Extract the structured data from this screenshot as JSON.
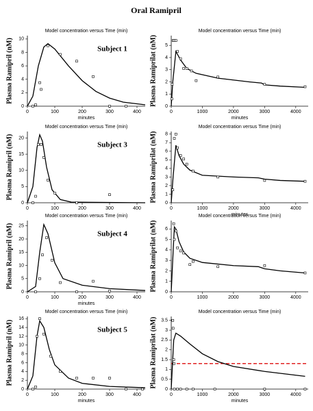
{
  "title": "Oral Ramipril",
  "chart_data": [
    {
      "type": "line",
      "title": "Model concentration versus Time (min)",
      "y_label": "Plasma Ramipril (nM)",
      "x_label": "minutes",
      "annotation": "Subject 1",
      "xlim": [
        0,
        430
      ],
      "ylim": [
        0,
        10.5
      ],
      "xticks": [
        0,
        100,
        200,
        300,
        400
      ],
      "yticks": [
        0,
        2,
        4,
        6,
        8,
        10
      ],
      "series": [
        {
          "style": "line",
          "color": "#000000",
          "x": [
            0,
            20,
            40,
            60,
            75,
            100,
            150,
            200,
            250,
            300,
            350,
            430
          ],
          "values": [
            0,
            1.5,
            6,
            8.8,
            9.3,
            8.5,
            6,
            3.8,
            2.2,
            1.2,
            0.6,
            0.2
          ]
        },
        {
          "style": "markers",
          "color": "#000000",
          "x": [
            20,
            30,
            45,
            50,
            75,
            120,
            180,
            240,
            300,
            360
          ],
          "values": [
            0,
            0.2,
            3.5,
            2.5,
            9,
            7.7,
            6.7,
            4.4,
            0,
            0
          ]
        }
      ]
    },
    {
      "type": "line",
      "title": "Model concentration versus Time (min)",
      "y_label": "Plasma Ramiprilat (nM)",
      "x_label": "minutes",
      "xlim": [
        0,
        4400
      ],
      "ylim": [
        0,
        5.8
      ],
      "xticks": [
        0,
        1000,
        2000,
        3000,
        4000
      ],
      "yticks": [
        0,
        1,
        2,
        3,
        4,
        5
      ],
      "series": [
        {
          "style": "line",
          "color": "#000000",
          "x": [
            0,
            50,
            150,
            300,
            500,
            800,
            1500,
            2500,
            2900,
            3000,
            3500,
            4300
          ],
          "values": [
            0,
            2,
            4.5,
            3.8,
            3.1,
            2.7,
            2.3,
            2.0,
            1.9,
            1.75,
            1.65,
            1.55
          ]
        },
        {
          "style": "markers",
          "color": "#000000",
          "x": [
            20,
            30,
            60,
            100,
            150,
            200,
            300,
            400,
            500,
            650,
            800,
            1500,
            3000,
            4300
          ],
          "values": [
            0.6,
            1.8,
            5.4,
            5.4,
            5.4,
            4.5,
            3.9,
            3.1,
            3.1,
            2.9,
            2.1,
            2.4,
            1.8,
            1.6
          ]
        }
      ]
    },
    {
      "type": "line",
      "title": "Model concentration versus Time (min)",
      "y_label": "Plasma Ramipril (nM)",
      "annotation": "Subject 3",
      "xlim": [
        0,
        430
      ],
      "ylim": [
        0,
        22
      ],
      "xticks": [
        0,
        100,
        200,
        300,
        400
      ],
      "yticks": [
        0,
        5,
        10,
        15,
        20
      ],
      "series": [
        {
          "style": "line",
          "color": "#000000",
          "x": [
            0,
            20,
            35,
            45,
            55,
            70,
            90,
            120,
            160,
            430
          ],
          "values": [
            0,
            5,
            17,
            21,
            19,
            11,
            4,
            1,
            0.2,
            0
          ]
        },
        {
          "style": "markers",
          "color": "#000000",
          "x": [
            20,
            30,
            40,
            50,
            60,
            75,
            100,
            180,
            300
          ],
          "values": [
            0,
            2,
            18,
            18,
            14,
            7,
            3,
            0,
            2.5
          ]
        }
      ]
    },
    {
      "type": "line",
      "title": "Model concentration versus Time (min)",
      "y_label": "Plasma Ramiprilat (nM)",
      "x_label": "minutes",
      "xlim": [
        0,
        4400
      ],
      "ylim": [
        0,
        8.3
      ],
      "xticks": [
        0,
        1000,
        2000,
        3000,
        4000
      ],
      "yticks": [
        0,
        1,
        2,
        3,
        4,
        5,
        6,
        7,
        8
      ],
      "series": [
        {
          "style": "line",
          "color": "#000000",
          "x": [
            0,
            60,
            150,
            250,
            400,
            600,
            1000,
            2000,
            2800,
            3000,
            3500,
            4300
          ],
          "values": [
            0,
            3,
            6.7,
            5.5,
            4.5,
            3.8,
            3.2,
            3.0,
            2.9,
            2.75,
            2.6,
            2.5
          ]
        },
        {
          "style": "markers",
          "color": "#000000",
          "x": [
            50,
            100,
            150,
            200,
            300,
            400,
            500,
            700,
            1500,
            3000,
            4300
          ],
          "values": [
            1.5,
            7.5,
            8,
            6.4,
            5.5,
            5.1,
            4.5,
            3.7,
            3.0,
            2.6,
            2.5
          ]
        }
      ]
    },
    {
      "type": "line",
      "title": "Model concentration versus Time (min)",
      "y_label": "Plasma Ramipril (nM)",
      "x_label": "minutes",
      "annotation": "Subject 4",
      "xlim": [
        0,
        430
      ],
      "ylim": [
        0,
        27
      ],
      "xticks": [
        0,
        100,
        200,
        300,
        400
      ],
      "yticks": [
        0,
        5,
        10,
        15,
        20,
        25
      ],
      "series": [
        {
          "style": "line",
          "color": "#000000",
          "x": [
            0,
            30,
            45,
            60,
            75,
            100,
            130,
            200,
            300,
            430
          ],
          "values": [
            0,
            2,
            15,
            25.5,
            22,
            11,
            5,
            2.5,
            1.2,
            0.5
          ]
        },
        {
          "style": "markers",
          "color": "#000000",
          "x": [
            30,
            45,
            55,
            70,
            90,
            120,
            180,
            240,
            300
          ],
          "values": [
            0,
            5,
            14,
            20.5,
            12,
            3.5,
            0,
            4,
            0.3
          ]
        }
      ]
    },
    {
      "type": "line",
      "title": "Model concentration versus Time (min)",
      "y_label": "Plasma Ramiprilat (nM)",
      "xlim": [
        0,
        4400
      ],
      "ylim": [
        0,
        6.8
      ],
      "xticks": [
        0,
        1000,
        2000,
        3000,
        4000
      ],
      "yticks": [
        0,
        1,
        2,
        3,
        4,
        5,
        6
      ],
      "series": [
        {
          "style": "line",
          "color": "#000000",
          "x": [
            0,
            100,
            150,
            250,
            400,
            600,
            1000,
            2000,
            2800,
            3000,
            3500,
            4300
          ],
          "values": [
            0,
            6.2,
            6,
            4.8,
            3.8,
            3.2,
            2.8,
            2.5,
            2.4,
            2.2,
            2.0,
            1.8
          ]
        },
        {
          "style": "markers",
          "color": "#000000",
          "x": [
            80,
            100,
            150,
            200,
            300,
            400,
            600,
            700,
            1500,
            3000,
            4300
          ],
          "values": [
            6.5,
            5,
            5.8,
            4.2,
            3.9,
            3.7,
            2.6,
            2.9,
            2.4,
            2.5,
            1.8
          ]
        }
      ]
    },
    {
      "type": "line",
      "title": "Model concentration versus Time (min)",
      "y_label": "Plasma Ramipril (nM)",
      "x_label": "minutes",
      "annotation": "Subject 5",
      "xlim": [
        0,
        430
      ],
      "ylim": [
        0,
        16.5
      ],
      "xticks": [
        0,
        100,
        200,
        300,
        400
      ],
      "yticks": [
        0,
        2,
        4,
        6,
        8,
        10,
        12,
        14,
        16
      ],
      "series": [
        {
          "style": "line",
          "color": "#000000",
          "x": [
            0,
            20,
            35,
            45,
            60,
            80,
            100,
            150,
            200,
            300,
            430
          ],
          "values": [
            0,
            3,
            12,
            15.5,
            14,
            9,
            5.5,
            2.5,
            1.3,
            0.6,
            0.3
          ]
        },
        {
          "style": "markers",
          "color": "#000000",
          "x": [
            20,
            30,
            35,
            45,
            60,
            85,
            120,
            180,
            240,
            300,
            360,
            420
          ],
          "values": [
            0,
            0.5,
            12,
            16,
            12.5,
            7.5,
            4,
            2.5,
            2.5,
            2.5,
            0,
            0
          ]
        }
      ]
    },
    {
      "type": "line",
      "title": "Model concentration versus Time (min)",
      "y_label": "Plasma Ramiprilat (nM)",
      "x_label": "minutes",
      "xlim": [
        0,
        4400
      ],
      "ylim": [
        0,
        3.7
      ],
      "xticks": [
        0,
        1000,
        2000,
        3000,
        4000
      ],
      "yticks": [
        0,
        0.5,
        1,
        1.5,
        2,
        2.5,
        3,
        3.5
      ],
      "reference_line": {
        "value": 1.3,
        "color": "#e02020",
        "dashed": true
      },
      "series": [
        {
          "style": "line",
          "color": "#000000",
          "x": [
            0,
            80,
            150,
            300,
            600,
            1000,
            1500,
            2000,
            3000,
            4300
          ],
          "values": [
            0,
            2.5,
            2.85,
            2.7,
            2.3,
            1.8,
            1.4,
            1.15,
            0.9,
            0.65
          ]
        },
        {
          "style": "markers",
          "color": "#000000",
          "x": [
            50,
            60,
            80,
            90,
            100,
            200,
            300,
            500,
            700,
            1400,
            3000,
            4300
          ],
          "values": [
            3.5,
            3.1,
            1.5,
            1.3,
            0,
            0,
            0,
            0,
            0,
            0,
            0,
            0
          ]
        }
      ]
    }
  ]
}
